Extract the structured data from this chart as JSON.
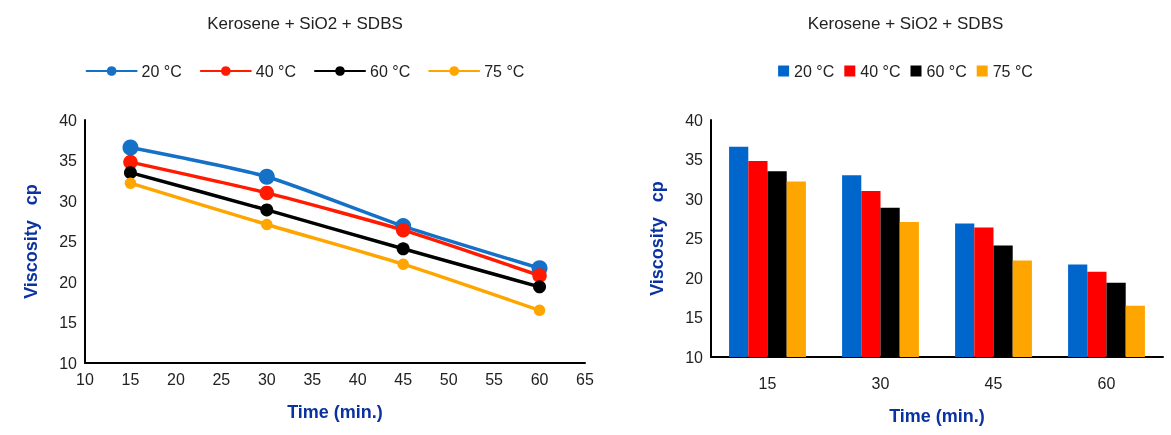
{
  "chart_data": [
    {
      "type": "line",
      "title": "Kerosene + SiO2 + SDBS",
      "xlabel": "Time (min.)",
      "ylabel": "Viscosity   cp",
      "x": [
        15,
        30,
        45,
        60
      ],
      "series": [
        {
          "name": "20 °C",
          "color": "#1570c8",
          "values": [
            36.6,
            33,
            26.9,
            21.7
          ]
        },
        {
          "name": "40 °C",
          "color": "#ff1a00",
          "values": [
            34.8,
            31,
            26.4,
            20.8
          ]
        },
        {
          "name": "60 °C",
          "color": "#000000",
          "values": [
            33.5,
            28.9,
            24.1,
            19.4
          ]
        },
        {
          "name": "75 °C",
          "color": "#ffa500",
          "values": [
            32.2,
            27.1,
            22.2,
            16.5
          ]
        }
      ],
      "xlim": [
        10,
        65
      ],
      "xticks": [
        10,
        15,
        20,
        25,
        30,
        35,
        40,
        45,
        50,
        55,
        60,
        65
      ],
      "ylim": [
        10,
        40
      ],
      "yticks": [
        10,
        15,
        20,
        25,
        30,
        35,
        40
      ],
      "grid": false,
      "legend": "top",
      "marker": "circle",
      "line_style": "solid"
    },
    {
      "type": "bar",
      "title": "Kerosene + SiO2 + SDBS",
      "xlabel": "Time (min.)",
      "ylabel": "Viscosity   cp",
      "categories": [
        "15",
        "30",
        "45",
        "60"
      ],
      "series": [
        {
          "name": "20 °C",
          "color": "#0066cc",
          "values": [
            36.6,
            33,
            26.9,
            21.7
          ]
        },
        {
          "name": "40 °C",
          "color": "#ff0000",
          "values": [
            34.8,
            31,
            26.4,
            20.8
          ]
        },
        {
          "name": "60 °C",
          "color": "#000000",
          "values": [
            33.5,
            28.9,
            24.1,
            19.4
          ]
        },
        {
          "name": "75 °C",
          "color": "#ffa500",
          "values": [
            32.2,
            27.1,
            22.2,
            16.5
          ]
        }
      ],
      "ylim": [
        10,
        40
      ],
      "yticks": [
        10,
        15,
        20,
        25,
        30,
        35,
        40
      ],
      "grid": false,
      "legend": "top"
    }
  ]
}
